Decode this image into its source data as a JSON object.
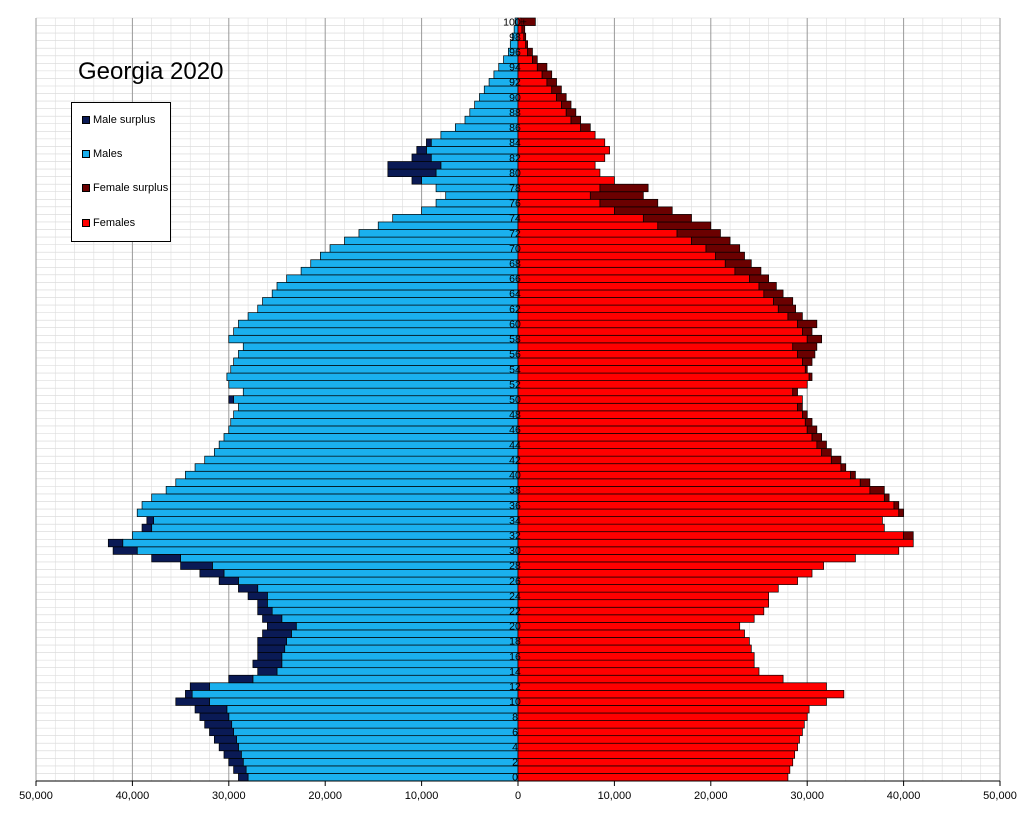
{
  "chart_data": {
    "type": "population-pyramid",
    "title": "Georgia 2020",
    "xlim": [
      -50000,
      50000
    ],
    "x_tick_values": [
      -50000,
      -40000,
      -30000,
      -20000,
      -10000,
      0,
      10000,
      20000,
      30000,
      40000,
      50000
    ],
    "x_tick_labels": [
      "50,000",
      "40,000",
      "30,000",
      "20,000",
      "10,000",
      "0",
      "10,000",
      "20,000",
      "30,000",
      "40,000",
      "50,000"
    ],
    "age_labels": [
      "0",
      "2",
      "4",
      "6",
      "8",
      "10",
      "12",
      "14",
      "16",
      "18",
      "20",
      "22",
      "24",
      "26",
      "28",
      "30",
      "32",
      "34",
      "36",
      "38",
      "40",
      "42",
      "44",
      "46",
      "48",
      "50",
      "52",
      "54",
      "56",
      "58",
      "60",
      "62",
      "64",
      "66",
      "68",
      "70",
      "72",
      "74",
      "76",
      "78",
      "80",
      "82",
      "84",
      "86",
      "88",
      "90",
      "92",
      "94",
      "96",
      "98",
      "100+"
    ],
    "legend": [
      {
        "label": "Male surplus",
        "color": "#0a1a55"
      },
      {
        "label": "Males",
        "color": "#1ab0ee"
      },
      {
        "label": "Female surplus",
        "color": "#6b0000"
      },
      {
        "label": "Females",
        "color": "#ff0000"
      }
    ],
    "colors": {
      "male_surplus": "#0a1a55",
      "males": "#1ab0ee",
      "female_surplus": "#6b0000",
      "females": "#ff0000",
      "outline": "#000000"
    },
    "ages": [
      "0",
      "1",
      "2",
      "3",
      "4",
      "5",
      "6",
      "7",
      "8",
      "9",
      "10",
      "11",
      "12",
      "13",
      "14",
      "15",
      "16",
      "17",
      "18",
      "19",
      "20",
      "21",
      "22",
      "23",
      "24",
      "25",
      "26",
      "27",
      "28",
      "29",
      "30",
      "31",
      "32",
      "33",
      "34",
      "35",
      "36",
      "37",
      "38",
      "39",
      "40",
      "41",
      "42",
      "43",
      "44",
      "45",
      "46",
      "47",
      "48",
      "49",
      "50",
      "51",
      "52",
      "53",
      "54",
      "55",
      "56",
      "57",
      "58",
      "59",
      "60",
      "61",
      "62",
      "63",
      "64",
      "65",
      "66",
      "67",
      "68",
      "69",
      "70",
      "71",
      "72",
      "73",
      "74",
      "75",
      "76",
      "77",
      "78",
      "79",
      "80",
      "81",
      "82",
      "83",
      "84",
      "85",
      "86",
      "87",
      "88",
      "89",
      "90",
      "91",
      "92",
      "93",
      "94",
      "95",
      "96",
      "97",
      "98",
      "99",
      "100+"
    ],
    "males": [
      29000,
      29500,
      30000,
      30500,
      31000,
      31500,
      32000,
      32500,
      33000,
      33500,
      35500,
      34500,
      34000,
      30000,
      27000,
      27500,
      27000,
      27000,
      27000,
      26500,
      26000,
      26500,
      27000,
      27000,
      28000,
      29000,
      31000,
      33000,
      35000,
      38000,
      42000,
      42500,
      40000,
      39000,
      38500,
      39500,
      39000,
      38000,
      36500,
      35500,
      34500,
      33500,
      32500,
      31500,
      31000,
      30500,
      30000,
      29800,
      29500,
      29000,
      30000,
      28500,
      30000,
      30200,
      29800,
      29500,
      29000,
      28500,
      30000,
      29500,
      29000,
      28000,
      27000,
      26500,
      25500,
      25000,
      24000,
      22500,
      21500,
      20500,
      19500,
      18000,
      16500,
      14500,
      13000,
      10000,
      8500,
      7500,
      8500,
      11000,
      13500,
      13500,
      11000,
      10500,
      9500,
      8000,
      6500,
      5500,
      5000,
      4500,
      4000,
      3500,
      3000,
      2500,
      2000,
      1500,
      1000,
      800,
      600,
      400,
      300
    ],
    "females": [
      28000,
      28200,
      28500,
      28700,
      29000,
      29200,
      29500,
      29700,
      30000,
      30200,
      32000,
      33800,
      32000,
      27500,
      25000,
      24500,
      24500,
      24200,
      24000,
      23500,
      23000,
      24500,
      25500,
      26000,
      26000,
      27000,
      29000,
      30500,
      31700,
      35000,
      39500,
      41000,
      41000,
      38000,
      37800,
      40000,
      39500,
      38500,
      38000,
      36500,
      35000,
      34000,
      33500,
      32500,
      32000,
      31500,
      31000,
      30500,
      30000,
      29500,
      29500,
      29000,
      30000,
      30500,
      30000,
      30500,
      30800,
      31000,
      31500,
      30500,
      31000,
      29500,
      28800,
      28500,
      27500,
      26800,
      26000,
      25200,
      24200,
      23500,
      23000,
      22000,
      21000,
      20000,
      18000,
      16000,
      14500,
      13000,
      13500,
      10000,
      8500,
      8000,
      9000,
      9500,
      9000,
      8000,
      7500,
      6500,
      6000,
      5500,
      5000,
      4500,
      4000,
      3500,
      3000,
      2000,
      1500,
      1000,
      800,
      700,
      1800
    ],
    "male_surplus_note": "Male surplus drawn where males exceed females; female surplus where females exceed males"
  }
}
